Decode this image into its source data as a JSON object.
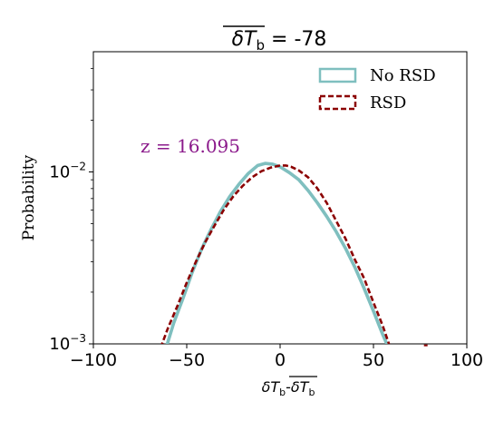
{
  "chart_data": {
    "type": "line",
    "title": {
      "main": "δT",
      "sub": "b",
      "suffix": " = -78"
    },
    "xlabel": {
      "a": "δT",
      "a_sub": "b",
      "dash": "-",
      "b": "δT",
      "b_sub": "b"
    },
    "ylabel": "Probability",
    "xlim": [
      -100,
      100
    ],
    "ylim": [
      0.001,
      0.05
    ],
    "yscale": "log",
    "x_ticks": [
      -100,
      -50,
      0,
      50,
      100
    ],
    "x_tick_labels": [
      "−100",
      "−50",
      "0",
      "50",
      "100"
    ],
    "y_ticks": [
      {
        "value": 0.001,
        "base": "10",
        "exp": "−3"
      },
      {
        "value": 0.01,
        "base": "10",
        "exp": "−2"
      }
    ],
    "annotation": {
      "text": "z = 16.095",
      "x": -60,
      "y": 0.0137,
      "color": "#8b1a8b"
    },
    "legend": {
      "placement": "top-right"
    },
    "series": [
      {
        "name": "No RSD",
        "color": "#7fbfbf",
        "style": "solid",
        "x": [
          -61,
          -57,
          -52,
          -47,
          -42,
          -37,
          -32,
          -27,
          -22,
          -17,
          -12,
          -8,
          -4,
          0,
          5,
          10,
          15,
          20,
          25,
          30,
          35,
          40,
          45,
          50,
          55,
          58
        ],
        "y": [
          0.00095,
          0.00132,
          0.00184,
          0.00262,
          0.00357,
          0.00463,
          0.00587,
          0.00718,
          0.00849,
          0.0098,
          0.0109,
          0.0112,
          0.0111,
          0.0107,
          0.0099,
          0.009,
          0.0078,
          0.0066,
          0.0055,
          0.0045,
          0.0036,
          0.0028,
          0.0021,
          0.00155,
          0.00113,
          0.00095
        ]
      },
      {
        "name": "RSD",
        "color": "#8b0000",
        "style": "dashed",
        "x": [
          -64,
          -60,
          -55,
          -50,
          -45,
          -40,
          -35,
          -30,
          -25,
          -20,
          -15,
          -10,
          -5,
          0,
          3,
          6,
          10,
          15,
          20,
          25,
          30,
          35,
          40,
          45,
          50,
          55,
          59
        ],
        "y": [
          0.00095,
          0.00124,
          0.00166,
          0.00227,
          0.00302,
          0.00392,
          0.0049,
          0.00606,
          0.00723,
          0.0083,
          0.0093,
          0.0101,
          0.0106,
          0.0109,
          0.0109,
          0.0107,
          0.0102,
          0.0093,
          0.008,
          0.0066,
          0.0052,
          0.0041,
          0.0031,
          0.0024,
          0.00174,
          0.00127,
          0.00095
        ]
      }
    ],
    "extra_marks": [
      {
        "x": 78,
        "y": 0.00098,
        "color": "#8b0000"
      }
    ]
  }
}
